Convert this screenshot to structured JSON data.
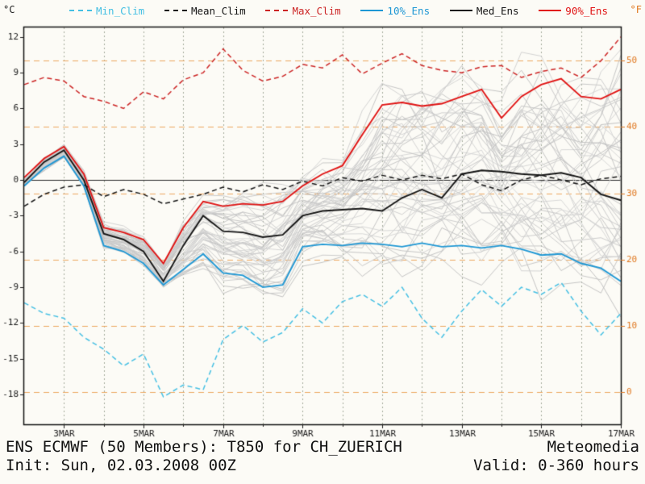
{
  "axes": {
    "left_unit": "°C",
    "right_unit": "°F"
  },
  "footer": {
    "title": "ENS ECMWF (50 Members): T850 for CH_ZUERICH",
    "init": "Init: Sun, 02.03.2008 00Z",
    "brand": "Meteomedia",
    "valid": "Valid: 0-360 hours"
  },
  "chart_data": {
    "type": "line",
    "title": "ENS ECMWF (50 Members): T850 for CH_ZUERICH",
    "init_time": "Sun, 02.03.2008 00Z",
    "valid_hours": "0-360",
    "x_days": [
      0,
      0.5,
      1,
      1.5,
      2,
      2.5,
      3,
      3.5,
      4,
      4.5,
      5,
      5.5,
      6,
      6.5,
      7,
      7.5,
      8,
      8.5,
      9,
      9.5,
      10,
      10.5,
      11,
      11.5,
      12,
      12.5,
      13,
      13.5,
      14,
      14.5,
      15
    ],
    "x_tick_days": [
      1,
      3,
      5,
      7,
      9,
      11,
      13,
      15
    ],
    "x_tick_labels": [
      "3MAR",
      "5MAR",
      "7MAR",
      "9MAR",
      "11MAR",
      "13MAR",
      "15MAR",
      "17MAR"
    ],
    "ylim": [
      -20.5,
      12.8
    ],
    "yticks_c": [
      -18,
      -15,
      -12,
      -9,
      -6,
      -3,
      0,
      3,
      6,
      9,
      12
    ],
    "yticks_f": [
      0,
      10,
      20,
      30,
      40,
      50
    ],
    "grid": {
      "vertical_days": true,
      "fahrenheit_lines": true,
      "zero_line": true
    },
    "legend_position": "top",
    "colors": {
      "c_axis": "#1c1c1c",
      "f_axis": "#e07820",
      "f_grid": "#eda75f",
      "day_grid": "#a3ab9b",
      "zero_line": "#2a2a2a",
      "frame": "#111111"
    },
    "series": [
      {
        "name": "Min_Clim",
        "color": "#44bfe3",
        "style": "dashed",
        "values": [
          -10.3,
          -11.2,
          -11.6,
          -13.2,
          -14.2,
          -15.6,
          -14.6,
          -18.2,
          -17.2,
          -17.6,
          -13.4,
          -12.2,
          -13.6,
          -12.8,
          -10.8,
          -12.0,
          -10.2,
          -9.6,
          -10.6,
          -9.0,
          -11.6,
          -13.2,
          -11.0,
          -9.2,
          -10.6,
          -9.0,
          -9.6,
          -8.6,
          -11.0,
          -13.0,
          -11.2
        ]
      },
      {
        "name": "Mean_Clim",
        "color": "#141414",
        "style": "dashed",
        "values": [
          -2.2,
          -1.2,
          -0.6,
          -0.4,
          -1.4,
          -0.8,
          -1.2,
          -2.0,
          -1.6,
          -1.2,
          -0.6,
          -1.0,
          -0.4,
          -0.8,
          -0.1,
          -0.5,
          0.2,
          -0.1,
          0.4,
          0.0,
          0.4,
          0.1,
          0.5,
          -0.4,
          -0.9,
          0.0,
          0.4,
          0.0,
          -0.4,
          0.1,
          0.3
        ]
      },
      {
        "name": "Max_Clim",
        "color": "#cc2424",
        "style": "dashed",
        "values": [
          8.0,
          8.6,
          8.3,
          7.0,
          6.6,
          6.0,
          7.4,
          6.8,
          8.4,
          9.0,
          11.0,
          9.2,
          8.3,
          8.7,
          9.7,
          9.4,
          10.5,
          8.9,
          9.8,
          10.6,
          9.6,
          9.2,
          9.0,
          9.5,
          9.6,
          8.6,
          9.1,
          9.4,
          8.6,
          10.0,
          12.0
        ]
      },
      {
        "name": "10%_Ens",
        "color": "#1e97d4",
        "style": "solid",
        "values": [
          -0.5,
          1.0,
          2.0,
          -0.5,
          -5.5,
          -6.0,
          -7.0,
          -8.8,
          -7.5,
          -6.2,
          -7.8,
          -8.0,
          -9.0,
          -8.8,
          -5.6,
          -5.4,
          -5.5,
          -5.3,
          -5.4,
          -5.6,
          -5.3,
          -5.6,
          -5.5,
          -5.7,
          -5.5,
          -5.8,
          -6.3,
          -6.2,
          -7.0,
          -7.4,
          -8.5
        ]
      },
      {
        "name": "Med_Ens",
        "color": "#141414",
        "style": "solid",
        "values": [
          -0.2,
          1.5,
          2.5,
          0.0,
          -4.5,
          -5.0,
          -6.0,
          -8.5,
          -5.5,
          -3.0,
          -4.3,
          -4.4,
          -4.8,
          -4.6,
          -3.0,
          -2.6,
          -2.5,
          -2.4,
          -2.6,
          -1.5,
          -0.8,
          -1.5,
          0.5,
          0.8,
          0.7,
          0.5,
          0.4,
          0.6,
          0.2,
          -1.2,
          -1.7
        ]
      },
      {
        "name": "90%_Ens",
        "color": "#e01212",
        "style": "solid",
        "values": [
          0.2,
          1.8,
          2.8,
          0.5,
          -4.0,
          -4.4,
          -5.0,
          -7.0,
          -4.0,
          -1.8,
          -2.2,
          -2.0,
          -2.1,
          -1.8,
          -0.5,
          0.5,
          1.2,
          3.8,
          6.3,
          6.5,
          6.2,
          6.4,
          7.0,
          7.6,
          5.2,
          7.0,
          8.0,
          8.5,
          7.0,
          6.8,
          7.6
        ]
      }
    ],
    "members": {
      "count": 50,
      "seed": 11,
      "color_base": "#c9c9c9"
    }
  }
}
